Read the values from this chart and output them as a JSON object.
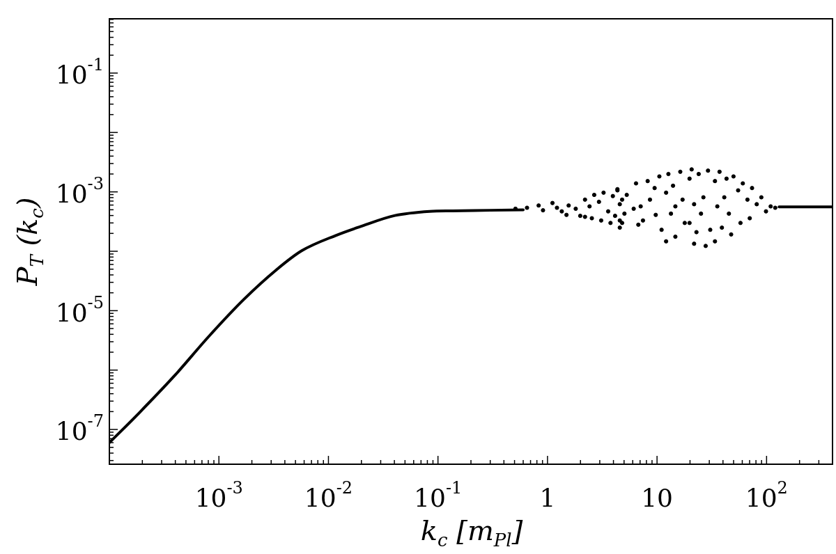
{
  "chart_data": {
    "type": "scatter",
    "xlabel": "k$_{c}$ [m$_{Pl}$]",
    "ylabel": "P$_{T}$ (k$_{c}$)",
    "log": "xy",
    "xlim": [
      0.0001,
      400
    ],
    "ylim": [
      2.6e-08,
      0.82
    ],
    "xticks": [
      {
        "value": 0.0002,
        "label": null
      },
      {
        "value": 0.0003,
        "label": null
      },
      {
        "value": 0.0004,
        "label": null
      },
      {
        "value": 0.0005,
        "label": null
      },
      {
        "value": 0.0006,
        "label": null
      },
      {
        "value": 0.0007,
        "label": null
      },
      {
        "value": 0.0008,
        "label": null
      },
      {
        "value": 0.0009,
        "label": null
      },
      {
        "value": 0.001,
        "label": "10$^{-3}$"
      },
      {
        "value": 0.002,
        "label": null
      },
      {
        "value": 0.003,
        "label": null
      },
      {
        "value": 0.004,
        "label": null
      },
      {
        "value": 0.005,
        "label": null
      },
      {
        "value": 0.006,
        "label": null
      },
      {
        "value": 0.007,
        "label": null
      },
      {
        "value": 0.008,
        "label": null
      },
      {
        "value": 0.009,
        "label": null
      },
      {
        "value": 0.01,
        "label": "10$^{-2}$"
      },
      {
        "value": 0.02,
        "label": null
      },
      {
        "value": 0.03,
        "label": null
      },
      {
        "value": 0.04,
        "label": null
      },
      {
        "value": 0.05,
        "label": null
      },
      {
        "value": 0.06,
        "label": null
      },
      {
        "value": 0.07,
        "label": null
      },
      {
        "value": 0.08,
        "label": null
      },
      {
        "value": 0.09,
        "label": null
      },
      {
        "value": 0.1,
        "label": "10$^{-1}$"
      },
      {
        "value": 0.2,
        "label": null
      },
      {
        "value": 0.3,
        "label": null
      },
      {
        "value": 0.4,
        "label": null
      },
      {
        "value": 0.5,
        "label": null
      },
      {
        "value": 0.6,
        "label": null
      },
      {
        "value": 0.7,
        "label": null
      },
      {
        "value": 0.8,
        "label": null
      },
      {
        "value": 0.9,
        "label": null
      },
      1,
      {
        "value": 2,
        "label": null
      },
      {
        "value": 3,
        "label": null
      },
      {
        "value": 4,
        "label": null
      },
      {
        "value": 5,
        "label": null
      },
      {
        "value": 6,
        "label": null
      },
      {
        "value": 7,
        "label": null
      },
      {
        "value": 8,
        "label": null
      },
      {
        "value": 9,
        "label": null
      },
      10,
      {
        "value": 20,
        "label": null
      },
      {
        "value": 30,
        "label": null
      },
      {
        "value": 40,
        "label": null
      },
      {
        "value": 50,
        "label": null
      },
      {
        "value": 60,
        "label": null
      },
      {
        "value": 70,
        "label": null
      },
      {
        "value": 80,
        "label": null
      },
      {
        "value": 90,
        "label": null
      },
      {
        "value": 100,
        "label": "10$^{2}$"
      },
      {
        "value": 200,
        "label": null
      },
      {
        "value": 300,
        "label": null
      }
    ],
    "yticks": [
      {
        "value": 3e-08,
        "label": null
      },
      {
        "value": 4e-08,
        "label": null
      },
      {
        "value": 5e-08,
        "label": null
      },
      {
        "value": 6e-08,
        "label": null
      },
      {
        "value": 7e-08,
        "label": null
      },
      {
        "value": 8e-08,
        "label": null
      },
      {
        "value": 9e-08,
        "label": null
      },
      {
        "value": 1e-07,
        "label": "10$^{-7}$"
      },
      {
        "value": 2e-07,
        "label": null
      },
      {
        "value": 3e-07,
        "label": null
      },
      {
        "value": 4e-07,
        "label": null
      },
      {
        "value": 5e-07,
        "label": null
      },
      {
        "value": 6e-07,
        "label": null
      },
      {
        "value": 7e-07,
        "label": null
      },
      {
        "value": 8e-07,
        "label": null
      },
      {
        "value": 9e-07,
        "label": null
      },
      {
        "value": 1e-06,
        "label": null
      },
      {
        "value": 2e-06,
        "label": null
      },
      {
        "value": 3e-06,
        "label": null
      },
      {
        "value": 4e-06,
        "label": null
      },
      {
        "value": 5e-06,
        "label": null
      },
      {
        "value": 6e-06,
        "label": null
      },
      {
        "value": 7e-06,
        "label": null
      },
      {
        "value": 8e-06,
        "label": null
      },
      {
        "value": 9e-06,
        "label": null
      },
      {
        "value": 1e-05,
        "label": "10$^{-5}$"
      },
      {
        "value": 2e-05,
        "label": null
      },
      {
        "value": 3e-05,
        "label": null
      },
      {
        "value": 4e-05,
        "label": null
      },
      {
        "value": 5e-05,
        "label": null
      },
      {
        "value": 6e-05,
        "label": null
      },
      {
        "value": 7e-05,
        "label": null
      },
      {
        "value": 8e-05,
        "label": null
      },
      {
        "value": 9e-05,
        "label": null
      },
      {
        "value": 0.0001,
        "label": null
      },
      {
        "value": 0.0002,
        "label": null
      },
      {
        "value": 0.0003,
        "label": null
      },
      {
        "value": 0.0004,
        "label": null
      },
      {
        "value": 0.0005,
        "label": null
      },
      {
        "value": 0.0006,
        "label": null
      },
      {
        "value": 0.0007,
        "label": null
      },
      {
        "value": 0.0008,
        "label": null
      },
      {
        "value": 0.0009,
        "label": null
      },
      {
        "value": 0.001,
        "label": "10$^{-3}$"
      },
      {
        "value": 0.002,
        "label": null
      },
      {
        "value": 0.003,
        "label": null
      },
      {
        "value": 0.004,
        "label": null
      },
      {
        "value": 0.005,
        "label": null
      },
      {
        "value": 0.006,
        "label": null
      },
      {
        "value": 0.007,
        "label": null
      },
      {
        "value": 0.008,
        "label": null
      },
      {
        "value": 0.009,
        "label": null
      },
      {
        "value": 0.01,
        "label": null
      },
      {
        "value": 0.02,
        "label": null
      },
      {
        "value": 0.03,
        "label": null
      },
      {
        "value": 0.04,
        "label": null
      },
      {
        "value": 0.05,
        "label": null
      },
      {
        "value": 0.06,
        "label": null
      },
      {
        "value": 0.07,
        "label": null
      },
      {
        "value": 0.08,
        "label": null
      },
      {
        "value": 0.09,
        "label": null
      },
      {
        "value": 0.1,
        "label": "10$^{-1}$"
      },
      {
        "value": 0.2,
        "label": null
      },
      {
        "value": 0.3,
        "label": null
      },
      {
        "value": 0.4,
        "label": null
      },
      {
        "value": 0.5,
        "label": null
      },
      {
        "value": 0.6,
        "label": null
      },
      {
        "value": 0.7,
        "label": null
      },
      {
        "value": 0.8,
        "label": null
      }
    ],
    "series": [
      {
        "type": "line",
        "marker": "none",
        "color": "#000000",
        "x": [
          0.0001,
          0.000187,
          0.00039,
          0.00081,
          0.00169,
          0.00336,
          0.0057,
          0.0118,
          0.0195,
          0.0405,
          0.084,
          0.136,
          0.3,
          0.6,
          10,
          130,
          400
        ],
        "values": [
          6e-08,
          1.9e-07,
          7.9e-07,
          3.7e-06,
          1.55e-05,
          4.9e-05,
          0.000102,
          0.000186,
          0.00026,
          0.0004,
          0.00047,
          0.00048,
          0.00049,
          0.0005,
          null,
          0.00056,
          0.00056
        ]
      },
      {
        "marker": "circle",
        "color": "#000000",
        "x": [
          0.51,
          0.65,
          0.83,
          0.91,
          1.11,
          1.22,
          1.35,
          1.56,
          1.81,
          1.99,
          2.2,
          2.42,
          2.67,
          2.95,
          3.25,
          3.58,
          3.95,
          4.35,
          4.57,
          4.8,
          5.04,
          2.54,
          3.09,
          3.76,
          4.14,
          1.49,
          2.2,
          4.57,
          4.35,
          4.8,
          4.57,
          5.29,
          6.12,
          6.43,
          6.75,
          7.44,
          8.21,
          8.62,
          9.5,
          9.73,
          10.5,
          11.0,
          12.1,
          12.7,
          13.4,
          14.0,
          14.7,
          16.3,
          17.1,
          17.9,
          19.8,
          20.7,
          21.8,
          22.9,
          24.0,
          25.2,
          26.5,
          27.8,
          29.2,
          30.6,
          33.8,
          35.5,
          37.2,
          39.1,
          41.1,
          43.1,
          45.3,
          47.5,
          49.9,
          55.0,
          57.8,
          60.7,
          66.9,
          70.2,
          73.7,
          81.3,
          89.6,
          98.8,
          109,
          120,
          12.1,
          21.8,
          33.8,
          7.09,
          14.7,
          19.8
        ],
        "values": [
          0.00052,
          0.00054,
          0.00059,
          0.00049,
          0.00065,
          0.00054,
          0.00047,
          0.00059,
          0.00052,
          0.000395,
          0.00074,
          0.00057,
          0.00089,
          0.00068,
          0.00097,
          0.00047,
          0.00085,
          0.00106,
          0.00062,
          0.0003,
          0.00043,
          0.00036,
          0.00033,
          0.0003,
          0.000395,
          0.00041,
          0.00038,
          0.00025,
          0.00111,
          0.00074,
          0.00033,
          0.00089,
          0.00052,
          0.00139,
          0.00028,
          0.00033,
          0.00152,
          0.00074,
          0.00116,
          0.00041,
          0.00182,
          0.00023,
          0.00097,
          0.002,
          0.00043,
          0.00127,
          0.000176,
          0.00218,
          0.00074,
          0.0003,
          0.00167,
          0.00239,
          0.00062,
          0.00021,
          0.002,
          0.00043,
          0.00081,
          0.000123,
          0.00228,
          0.00023,
          0.00152,
          0.00057,
          0.00218,
          0.00025,
          0.00081,
          0.00167,
          0.00043,
          0.000192,
          0.00182,
          0.00106,
          0.0003,
          0.00139,
          0.00074,
          0.00036,
          0.00116,
          0.00062,
          0.00081,
          0.00047,
          0.00057,
          0.00054,
          0.000147,
          0.000134,
          0.000147,
          0.00057,
          0.00057,
          0.0003
        ]
      }
    ]
  }
}
